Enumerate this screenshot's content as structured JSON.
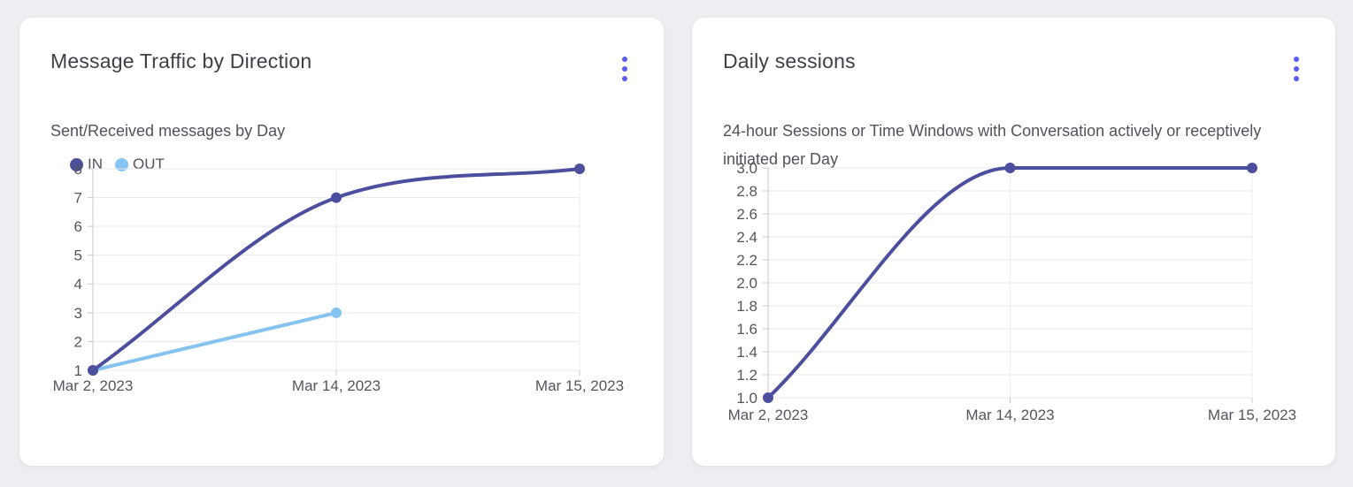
{
  "theme": {
    "accent": "#5a5bf0",
    "page_background": "#eeeef2",
    "card_background": "#ffffff",
    "title_color": "#3f3f46",
    "subtitle_color": "#52525b",
    "grid_color": "#e9e9ec",
    "axis_color": "#c9c9ce",
    "series_in_color": "#4b4f9e",
    "series_out_color": "#85c3f1"
  },
  "cards": [
    {
      "title": "Message Traffic by Direction",
      "subtitle": "Sent/Received messages by Day",
      "menu_icon": "kebab-vertical",
      "legend": [
        {
          "label": "IN",
          "color": "#4b4f9e"
        },
        {
          "label": "OUT",
          "color": "#85c3f1"
        }
      ]
    },
    {
      "title": "Daily sessions",
      "subtitle": "24-hour Sessions or Time Windows with Conversation actively or receptively initiated per Day",
      "menu_icon": "kebab-vertical"
    }
  ],
  "chart_data": [
    {
      "type": "line",
      "title": "Message Traffic by Direction",
      "subtitle": "Sent/Received messages by Day",
      "categories": [
        "Mar 2, 2023",
        "Mar 14, 2023",
        "Mar 15, 2023"
      ],
      "series": [
        {
          "name": "IN",
          "color": "#4b4f9e",
          "values": [
            1,
            7,
            8
          ]
        },
        {
          "name": "OUT",
          "color": "#85c3f1",
          "values": [
            1,
            3,
            null
          ]
        }
      ],
      "ylim": [
        1,
        8
      ],
      "yticks": [
        1,
        2,
        3,
        4,
        5,
        6,
        7,
        8
      ],
      "ytick_decimals": 0,
      "grid": true,
      "legend_position": "top-left",
      "curve": "monotone"
    },
    {
      "type": "line",
      "title": "Daily sessions",
      "subtitle": "24-hour Sessions or Time Windows with Conversation actively or receptively initiated per Day",
      "categories": [
        "Mar 2, 2023",
        "Mar 14, 2023",
        "Mar 15, 2023"
      ],
      "series": [
        {
          "name": "Daily sessions",
          "color": "#4b4f9e",
          "values": [
            1.0,
            3.0,
            3.0
          ]
        }
      ],
      "ylim": [
        1.0,
        3.0
      ],
      "yticks": [
        1.0,
        1.2,
        1.4,
        1.6,
        1.8,
        2.0,
        2.2,
        2.4,
        2.6,
        2.8,
        3.0
      ],
      "ytick_decimals": 1,
      "grid": true,
      "legend_position": "none",
      "curve": "monotone"
    }
  ]
}
